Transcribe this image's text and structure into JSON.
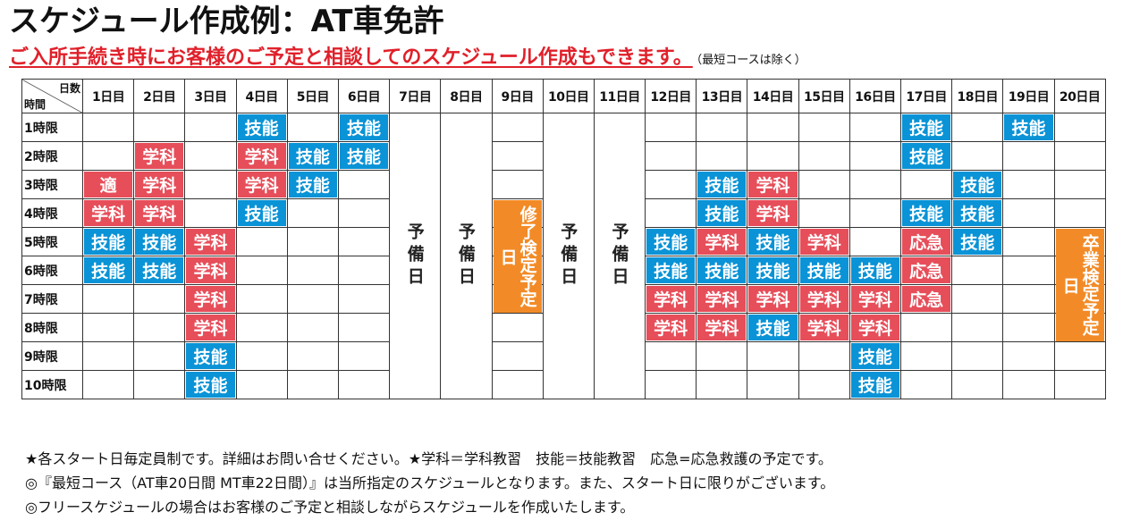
{
  "title": "スケジュール作成例：AT車免許",
  "subtitle": {
    "main": "ご入所手続き時にお客様のご予定と相談してのスケジュール作成もできます。",
    "note": "（最短コースは除く）"
  },
  "table": {
    "corner_top": "日数",
    "corner_bottom": "時間",
    "days": [
      "1日目",
      "2日目",
      "3日目",
      "4日目",
      "5日目",
      "6日目",
      "7日目",
      "8日目",
      "9日目",
      "10日目",
      "11日目",
      "12日目",
      "13日目",
      "14日目",
      "15日目",
      "16日目",
      "17日目",
      "18日目",
      "19日目",
      "20日目"
    ],
    "periods": [
      "1時限",
      "2時限",
      "3時限",
      "4時限",
      "5時限",
      "6時限",
      "7時限",
      "8時限",
      "9時限",
      "10時限"
    ],
    "reserve_label": "予備日",
    "mid_exam_label": "修了検定予定日",
    "grad_exam_label": "卒業検定予定日",
    "cells": [
      [
        "",
        "",
        "",
        "技能",
        "",
        "技能",
        "R",
        "R",
        "E",
        "R",
        "R",
        "",
        "",
        "",
        "",
        "",
        "技能",
        "",
        "技能",
        "G"
      ],
      [
        "",
        "学科",
        "",
        "学科",
        "技能",
        "技能",
        "R",
        "R",
        "E",
        "R",
        "R",
        "",
        "",
        "",
        "",
        "",
        "技能",
        "",
        "",
        "G"
      ],
      [
        "適",
        "学科",
        "",
        "学科",
        "技能",
        "",
        "R",
        "R",
        "E",
        "R",
        "R",
        "",
        "技能",
        "学科",
        "",
        "",
        "",
        "技能",
        "",
        "G"
      ],
      [
        "学科",
        "学科",
        "",
        "技能",
        "",
        "",
        "R",
        "R",
        "E",
        "R",
        "R",
        "",
        "技能",
        "学科",
        "",
        "",
        "技能",
        "技能",
        "",
        "G"
      ],
      [
        "技能",
        "技能",
        "学科",
        "",
        "",
        "",
        "R",
        "R",
        "E",
        "R",
        "R",
        "技能",
        "学科",
        "技能",
        "学科",
        "",
        "応急",
        "技能",
        "",
        "G"
      ],
      [
        "技能",
        "技能",
        "学科",
        "",
        "",
        "",
        "R",
        "R",
        "E",
        "R",
        "R",
        "技能",
        "技能",
        "技能",
        "技能",
        "技能",
        "応急",
        "",
        "",
        "G"
      ],
      [
        "",
        "",
        "学科",
        "",
        "",
        "",
        "R",
        "R",
        "E",
        "R",
        "R",
        "学科",
        "学科",
        "学科",
        "学科",
        "学科",
        "応急",
        "",
        "",
        "G"
      ],
      [
        "",
        "",
        "学科",
        "",
        "",
        "",
        "R",
        "R",
        "E",
        "R",
        "R",
        "学科",
        "学科",
        "技能",
        "学科",
        "学科",
        "",
        "",
        "",
        "G"
      ],
      [
        "",
        "",
        "技能",
        "",
        "",
        "",
        "R",
        "R",
        "E",
        "R",
        "R",
        "",
        "",
        "",
        "",
        "技能",
        "",
        "",
        "",
        "G"
      ],
      [
        "",
        "",
        "技能",
        "",
        "",
        "",
        "R",
        "R",
        "E",
        "R",
        "R",
        "",
        "",
        "",
        "",
        "技能",
        "",
        "",
        "",
        "G"
      ]
    ]
  },
  "footnotes": [
    "★各スタート日毎定員制です。詳細はお問い合せください。★学科＝学科教習　技能＝技能教習　応急=応急救護の予定です。",
    "◎『最短コース（AT車20日間 MT車22日間）』は当所指定のスケジュールとなります。また、スタート日に限りがございます。",
    "◎フリースケジュールの場合はお客様のご予定と相談しながらスケジュールを作成いたします。"
  ],
  "colors": {
    "gakka": "#e64e5a",
    "gino": "#0a93d6",
    "exam": "#f28b27",
    "subtitle_red": "#e0202a"
  }
}
